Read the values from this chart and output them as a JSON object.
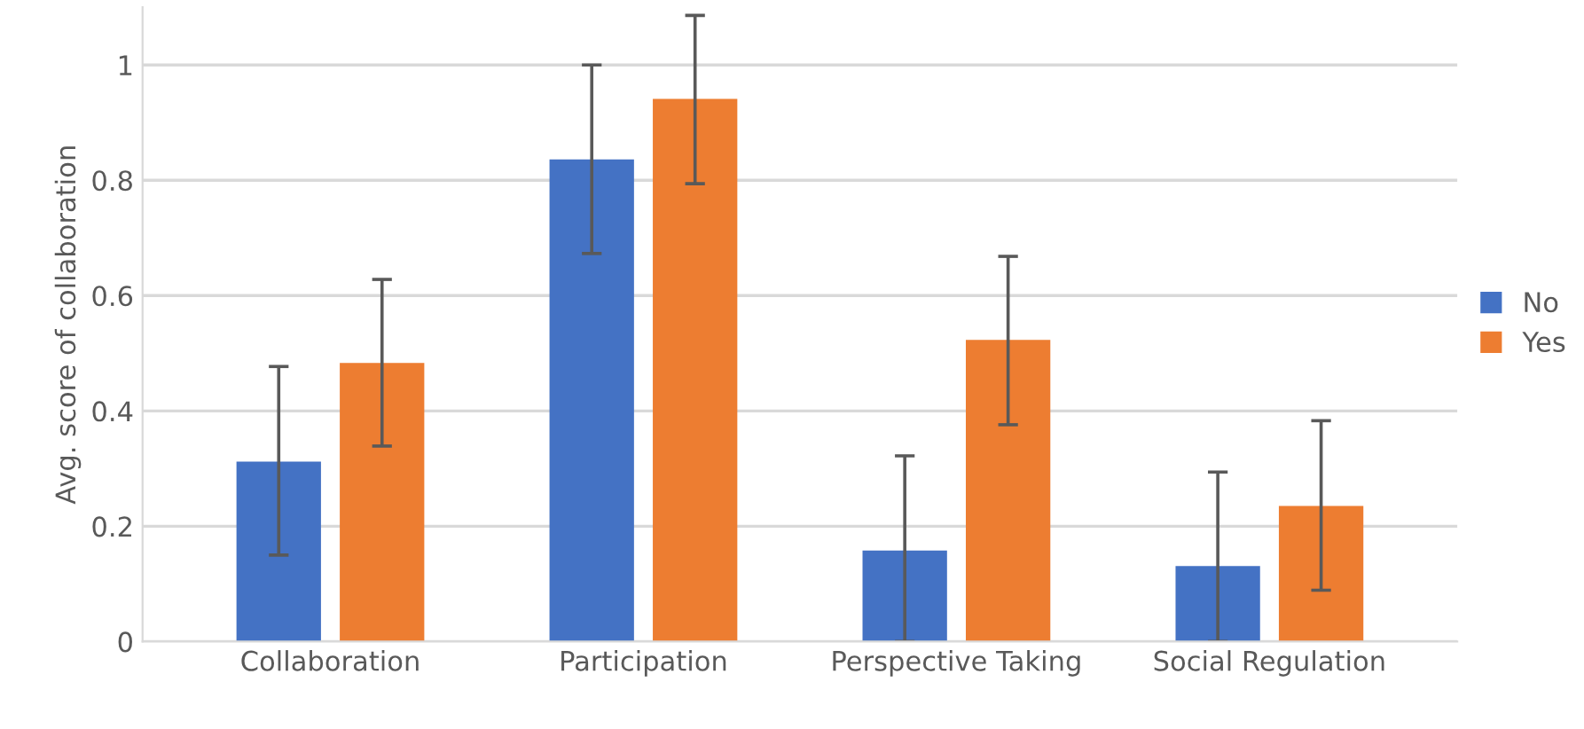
{
  "chart_data": {
    "type": "bar",
    "ylabel": "Avg. score of collaboration",
    "categories": [
      "Collaboration",
      "Participation",
      "Perspective Taking",
      "Social Regulation"
    ],
    "series": [
      {
        "name": "No",
        "color": "#4472c4",
        "values": [
          0.312,
          0.836,
          0.158,
          0.131
        ],
        "errors": [
          [
            0.15,
            0.477
          ],
          [
            0.673,
            1.0
          ],
          [
            0,
            0.322
          ],
          [
            0,
            0.294
          ]
        ]
      },
      {
        "name": "Yes",
        "color": "#ed7d31",
        "values": [
          0.483,
          0.941,
          0.523,
          0.235
        ],
        "errors": [
          [
            0.339,
            0.628
          ],
          [
            0.794,
            1.086
          ],
          [
            0.376,
            0.668
          ],
          [
            0.089,
            0.383
          ]
        ]
      }
    ],
    "ylim": [
      0,
      1.1
    ],
    "yticks": [
      0,
      0.2,
      0.4,
      0.6,
      0.8,
      1
    ],
    "grid": "y",
    "legend": "right"
  }
}
